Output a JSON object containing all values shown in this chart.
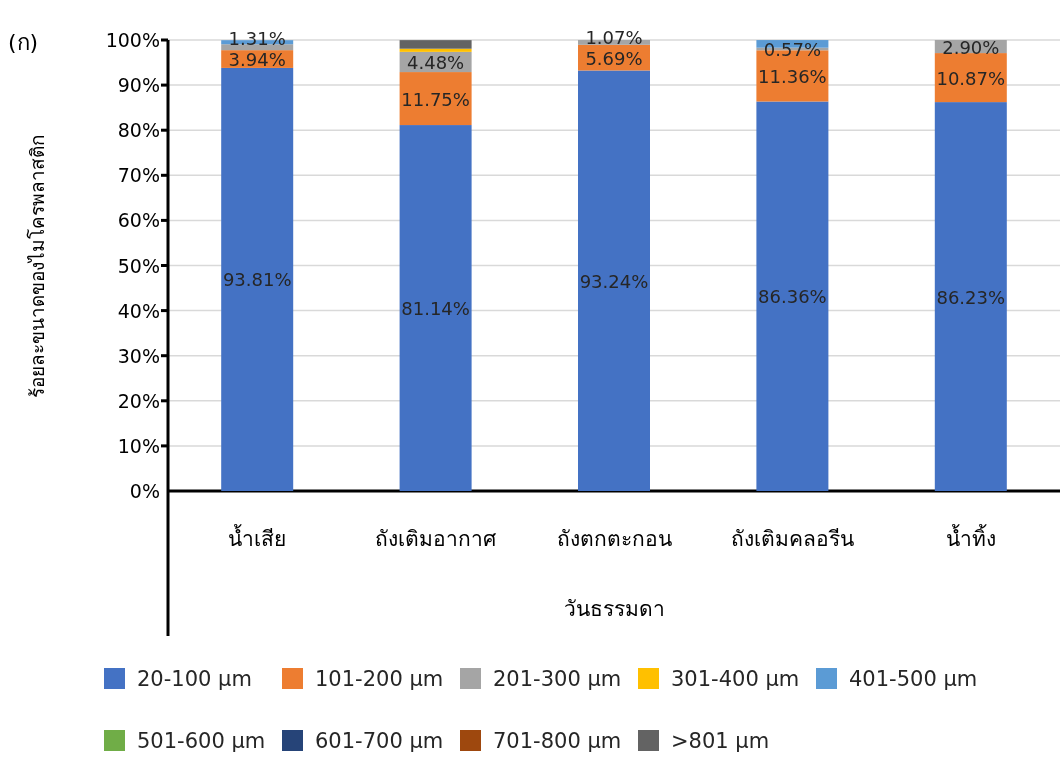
{
  "chart_data": {
    "type": "bar",
    "stacked": true,
    "ylabel": "ร้อยละขนาดของไมโครพลาสติก",
    "xlabel": "วันธรรมดา",
    "annotations": [
      "(ก)"
    ],
    "categories": [
      "น้ำเสีย",
      "ถังเติมอากาศ",
      "ถังตกตะกอน",
      "ถังเติมคลอรีน",
      "น้ำทิ้ง"
    ],
    "ylim": [
      0,
      100
    ],
    "yticks": [
      {
        "value": 0,
        "label": "0%"
      },
      {
        "value": 10,
        "label": "10%"
      },
      {
        "value": 20,
        "label": "20%"
      },
      {
        "value": 30,
        "label": "30%"
      },
      {
        "value": 40,
        "label": "40%"
      },
      {
        "value": 50,
        "label": "50%"
      },
      {
        "value": 60,
        "label": "60%"
      },
      {
        "value": 70,
        "label": "70%"
      },
      {
        "value": 80,
        "label": "80%"
      },
      {
        "value": 90,
        "label": "90%"
      },
      {
        "value": 100,
        "label": "100%"
      }
    ],
    "grid": "y",
    "legend": "bottom",
    "series": [
      {
        "name": "20-100 µm",
        "color": "#4472c4",
        "values": [
          93.81,
          81.14,
          93.24,
          86.36,
          86.23
        ],
        "value_labels": [
          "93.81%",
          "81.14%",
          "93.24%",
          "86.36%",
          "86.23%"
        ]
      },
      {
        "name": "101-200 µm",
        "color": "#ed7d31",
        "values": [
          3.94,
          11.75,
          5.69,
          11.36,
          10.87
        ],
        "value_labels": [
          "3.94%",
          "11.75%",
          "5.69%",
          "11.36%",
          "10.87%"
        ]
      },
      {
        "name": "201-300 µm",
        "color": "#a5a5a5",
        "values": [
          1.31,
          4.48,
          1.07,
          0.57,
          2.9
        ],
        "value_labels": [
          "1.31%",
          "4.48%",
          "1.07%",
          "0.57%",
          "2.90%"
        ]
      },
      {
        "name": "301-400 µm",
        "color": "#ffc000",
        "values": [
          0,
          0.7,
          0,
          0,
          0
        ]
      },
      {
        "name": "401-500 µm",
        "color": "#5b9bd5",
        "values": [
          0.9,
          0,
          0,
          1.7,
          0
        ]
      },
      {
        "name": "501-600 µm",
        "color": "#70ad47",
        "values": [
          0,
          0,
          0,
          0,
          0
        ]
      },
      {
        "name": "601-700 µm",
        "color": "#264478",
        "values": [
          0,
          0,
          0,
          0,
          0
        ]
      },
      {
        "name": "701-800 µm",
        "color": "#9e480e",
        "values": [
          0,
          0,
          0,
          0,
          0
        ]
      },
      {
        "name": ">801 µm",
        "color": "#636363",
        "values": [
          0,
          1.9,
          0,
          0,
          0
        ]
      }
    ]
  }
}
